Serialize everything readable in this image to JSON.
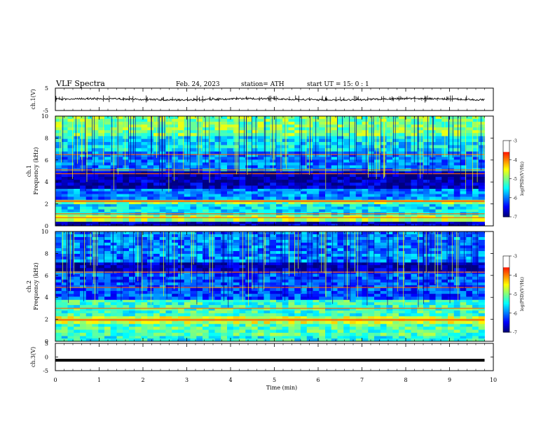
{
  "header": {
    "title": "VLF  Spectra",
    "date": "Feb. 24, 2023",
    "station": "station= ATH",
    "start_time": "start  UT  =    15: 0   : 1"
  },
  "chart_data": [
    {
      "type": "line",
      "panel": "ch1-waveform",
      "ylabel": "ch.1(V)",
      "ylim": [
        -5,
        5
      ],
      "yticks": [
        "5",
        "-5"
      ],
      "xlim": [
        0,
        10
      ],
      "approx_baseline_V": 0,
      "spikes": "frequent impulsive spikes (sferics) between roughly -1.5 and +1.5 V across the 0-9.8 min record"
    },
    {
      "type": "heatmap",
      "panel": "ch1-spectrogram",
      "ylabel": "ch.1\nFrequency (kHz)",
      "ylim": [
        0,
        10
      ],
      "yticks": [
        "0",
        "2",
        "4",
        "6",
        "8",
        "10"
      ],
      "xlim": [
        0,
        10
      ],
      "data_extent_min": [
        0,
        9.8
      ],
      "colorbar": {
        "label": "log(PSD)(V²/Hz)",
        "range": [
          -7,
          -3
        ],
        "ticks": [
          "-3",
          "-4",
          "-5",
          "-6",
          "-7"
        ]
      },
      "bands": [
        {
          "from_kHz": 0.0,
          "to_kHz": 0.4,
          "level": -6.8
        },
        {
          "from_kHz": 0.4,
          "to_kHz": 1.0,
          "level": -4.8
        },
        {
          "from_kHz": 1.0,
          "to_kHz": 2.0,
          "level": -5.6
        },
        {
          "from_kHz": 2.0,
          "to_kHz": 2.4,
          "level": -5.0
        },
        {
          "from_kHz": 2.4,
          "to_kHz": 3.4,
          "level": -6.0
        },
        {
          "from_kHz": 3.4,
          "to_kHz": 5.0,
          "level": -6.8
        },
        {
          "from_kHz": 5.0,
          "to_kHz": 6.8,
          "level": -6.0
        },
        {
          "from_kHz": 6.8,
          "to_kHz": 8.2,
          "level": -5.6
        },
        {
          "from_kHz": 8.2,
          "to_kHz": 10.0,
          "level": -5.0
        }
      ],
      "lines_kHz": [
        0.75,
        1.1,
        2.2,
        2.3,
        4.75,
        5.1,
        6.5
      ]
    },
    {
      "type": "heatmap",
      "panel": "ch2-spectrogram",
      "ylabel": "ch.2\nFrequency (kHz)",
      "ylim": [
        0,
        10
      ],
      "yticks": [
        "0",
        "2",
        "4",
        "6",
        "8",
        "10"
      ],
      "xlim": [
        0,
        10
      ],
      "data_extent_min": [
        0,
        9.8
      ],
      "colorbar": {
        "label": "log(PSD)(V²/Hz)",
        "range": [
          -7,
          -3
        ],
        "ticks": [
          "-3",
          "-4",
          "-5",
          "-6",
          "-7"
        ]
      },
      "bands": [
        {
          "from_kHz": 0.0,
          "to_kHz": 0.5,
          "level": -5.4
        },
        {
          "from_kHz": 0.5,
          "to_kHz": 1.6,
          "level": -5.2
        },
        {
          "from_kHz": 1.6,
          "to_kHz": 2.3,
          "level": -4.7
        },
        {
          "from_kHz": 2.3,
          "to_kHz": 3.8,
          "level": -5.3
        },
        {
          "from_kHz": 3.8,
          "to_kHz": 6.4,
          "level": -6.2
        },
        {
          "from_kHz": 6.4,
          "to_kHz": 7.2,
          "level": -6.8
        },
        {
          "from_kHz": 7.2,
          "to_kHz": 10.0,
          "level": -6.0
        }
      ],
      "lines_kHz": [
        1.9,
        2.0,
        3.0,
        4.9,
        6.3
      ]
    },
    {
      "type": "line",
      "panel": "ch3-waveform",
      "ylabel": "ch.3(V)",
      "ylim": [
        -5,
        5
      ],
      "yticks": [
        "5",
        "0",
        "-5"
      ],
      "xlim": [
        0,
        10
      ],
      "approx_level_V": -1.2
    }
  ],
  "x_axis": {
    "label": "Time  (min)",
    "ticks": [
      "0",
      "1",
      "2",
      "3",
      "4",
      "5",
      "6",
      "7",
      "8",
      "9",
      "10"
    ]
  }
}
